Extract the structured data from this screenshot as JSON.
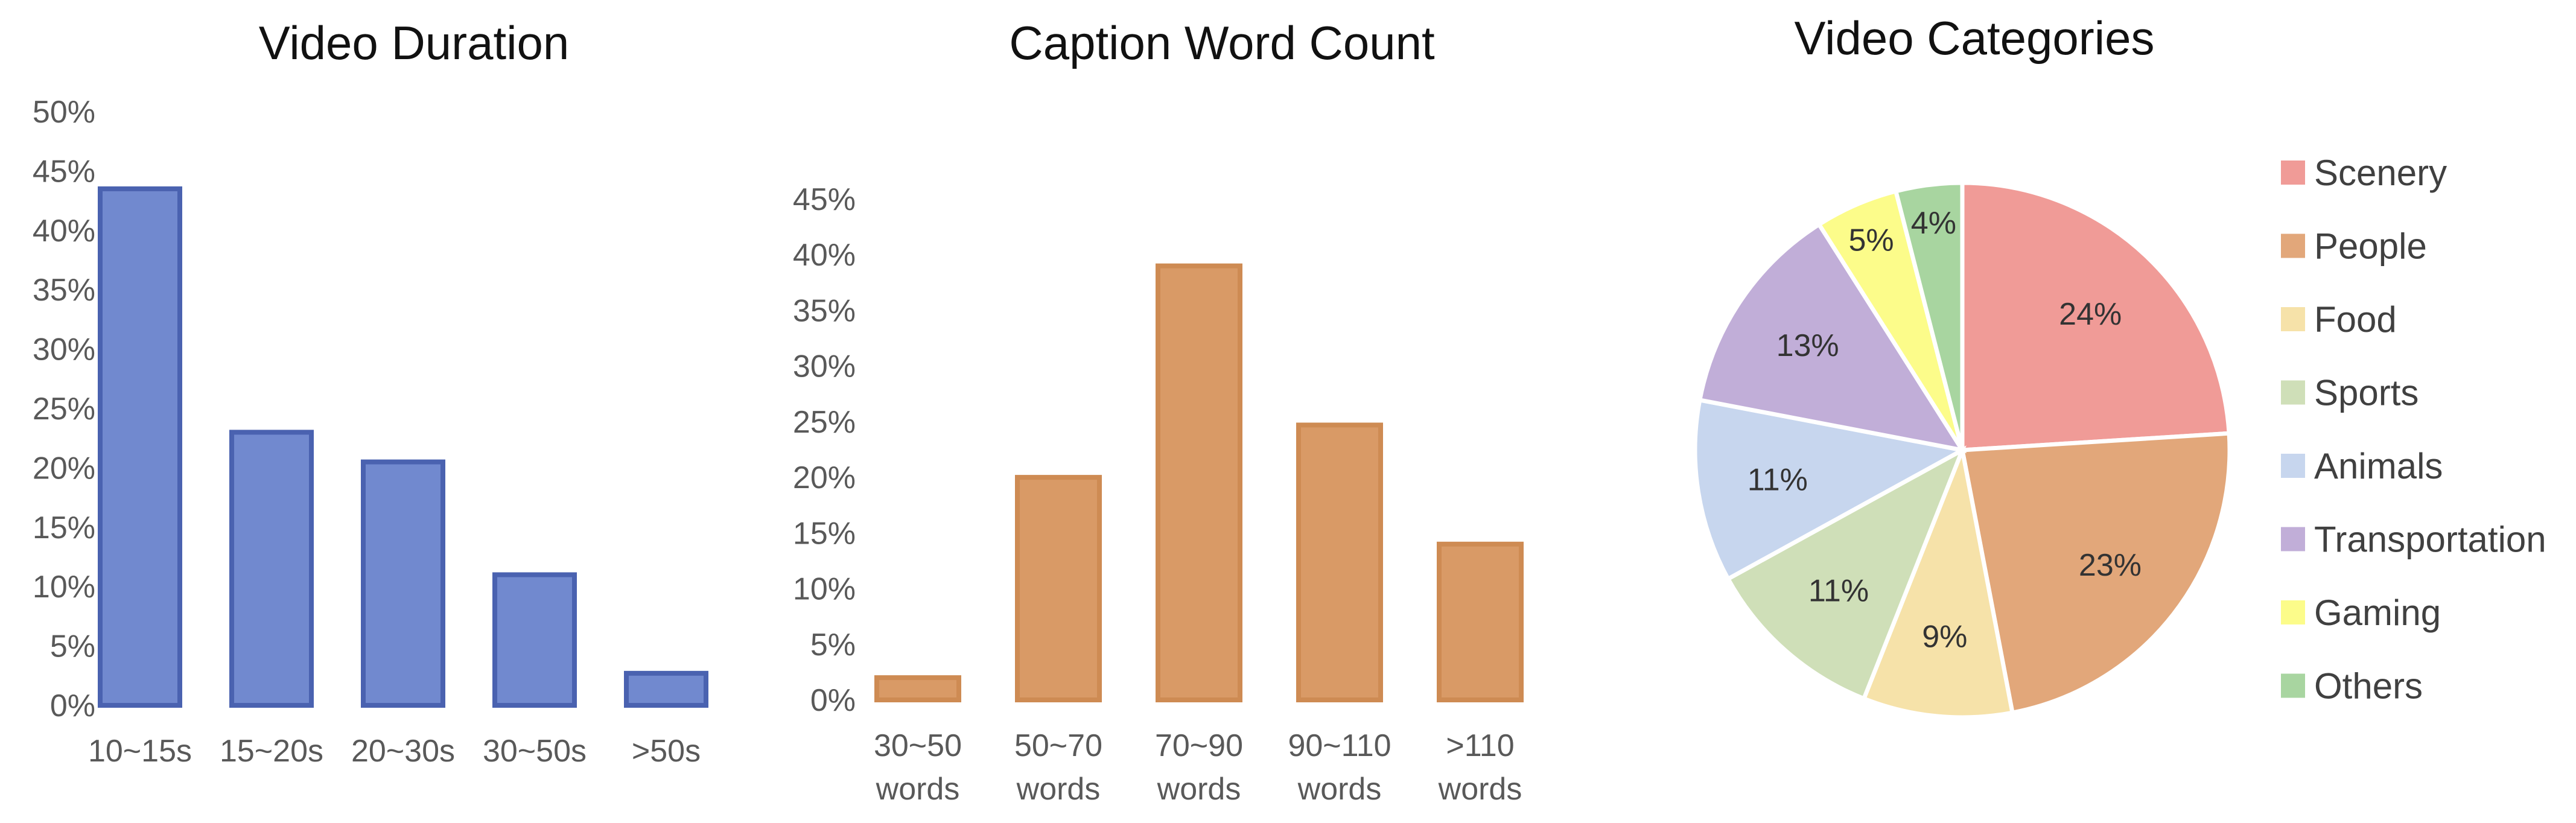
{
  "chart_data": [
    {
      "type": "bar",
      "title": "Video Duration",
      "categories": [
        "10~15s",
        "15~20s",
        "20~30s",
        "30~50s",
        ">50s"
      ],
      "values": [
        43.5,
        23,
        20.5,
        11,
        2.7
      ],
      "ylim": [
        0,
        50
      ],
      "yticks": [
        "0%",
        "5%",
        "10%",
        "15%",
        "20%",
        "25%",
        "30%",
        "35%",
        "40%",
        "45%",
        "50%"
      ],
      "color": "#7189CF",
      "edge_color": "#4A62B0"
    },
    {
      "type": "bar",
      "title": "Caption Word Count",
      "categories": [
        [
          "30~50",
          "words"
        ],
        [
          "50~70",
          "words"
        ],
        [
          "70~90",
          "words"
        ],
        [
          "90~110",
          "words"
        ],
        [
          ">110",
          "words"
        ]
      ],
      "values": [
        2,
        20,
        39,
        24.7,
        14
      ],
      "ylim": [
        0,
        45
      ],
      "yticks": [
        "0%",
        "5%",
        "10%",
        "15%",
        "20%",
        "25%",
        "30%",
        "35%",
        "40%",
        "45%"
      ],
      "color": "#D99A66",
      "edge_color": "#CE8B53"
    },
    {
      "type": "pie",
      "title": "Video Categories",
      "labels": [
        "Scenery",
        "People",
        "Food",
        "Sports",
        "Animals",
        "Transportation",
        "Gaming",
        "Others"
      ],
      "values": [
        24,
        23,
        9,
        11,
        11,
        13,
        5,
        4
      ],
      "data_labels": [
        "24%",
        "23%",
        "9%",
        "11%",
        "11%",
        "13%",
        "5%",
        "4%"
      ],
      "colors": [
        "#F09B97",
        "#E2A77A",
        "#F6E2A9",
        "#CFDFB8",
        "#C7D6EE",
        "#C1AED8",
        "#FCFC8A",
        "#A8D5A0"
      ],
      "legend_position": "right"
    }
  ]
}
